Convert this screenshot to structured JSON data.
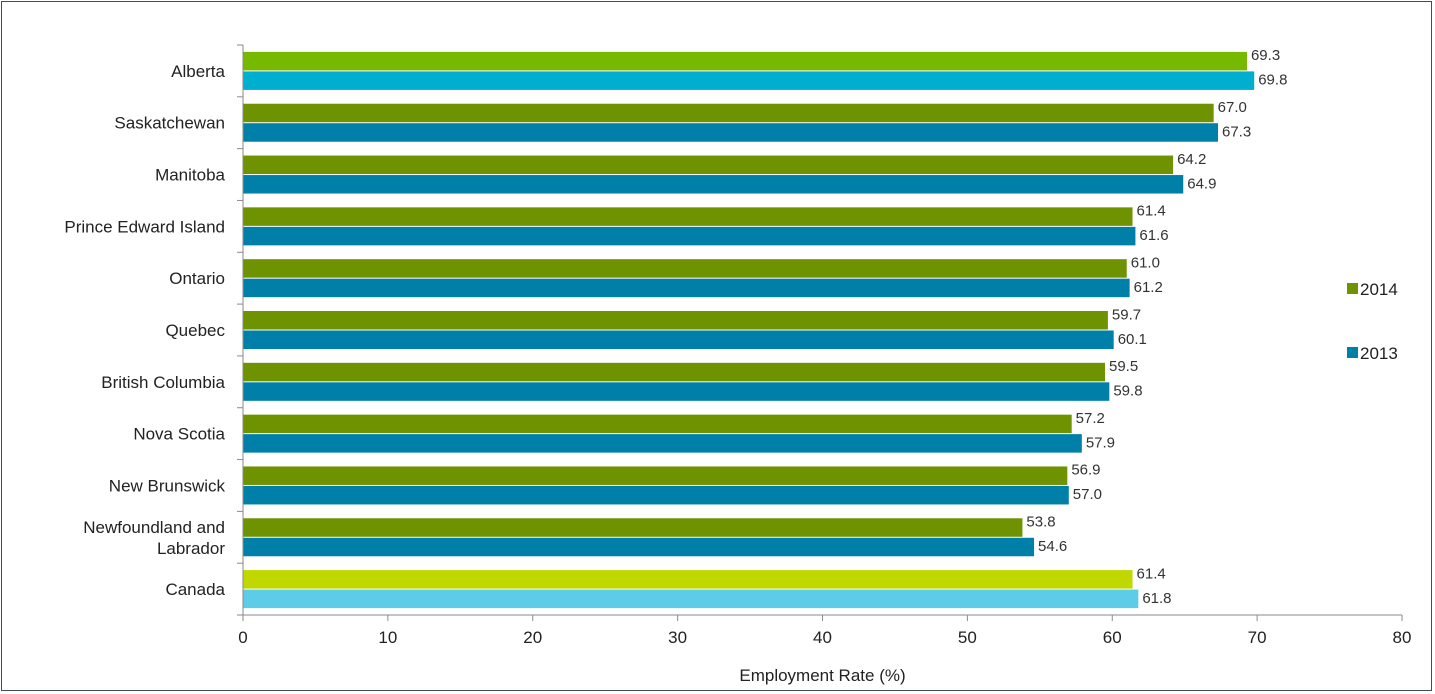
{
  "chart_data": {
    "type": "bar",
    "orientation": "horizontal",
    "categories": [
      "Alberta",
      "Saskatchewan",
      "Manitoba",
      "Prince Edward Island",
      "Ontario",
      "Quebec",
      "British Columbia",
      "Nova Scotia",
      "New Brunswick",
      "Newfoundland and Labrador",
      "Canada"
    ],
    "category_lines": [
      [
        "Alberta"
      ],
      [
        "Saskatchewan"
      ],
      [
        "Manitoba"
      ],
      [
        "Prince Edward Island"
      ],
      [
        "Ontario"
      ],
      [
        "Quebec"
      ],
      [
        "British Columbia"
      ],
      [
        "Nova Scotia"
      ],
      [
        "New Brunswick"
      ],
      [
        "Newfoundland and",
        "Labrador"
      ],
      [
        "Canada"
      ]
    ],
    "series": [
      {
        "name": "2014",
        "values": [
          69.3,
          67.0,
          64.2,
          61.4,
          61.0,
          59.7,
          59.5,
          57.2,
          56.9,
          53.8,
          61.4
        ],
        "labels": [
          "69.3",
          "67.0",
          "64.2",
          "61.4",
          "61.0",
          "59.7",
          "59.5",
          "57.2",
          "56.9",
          "53.8",
          "61.4"
        ],
        "colors": [
          "#77b800",
          "#6f9300",
          "#6f9300",
          "#6f9300",
          "#6f9300",
          "#6f9300",
          "#6f9300",
          "#6f9300",
          "#6f9300",
          "#6f9300",
          "#c0d800"
        ]
      },
      {
        "name": "2013",
        "values": [
          69.8,
          67.3,
          64.9,
          61.6,
          61.2,
          60.1,
          59.8,
          57.9,
          57.0,
          54.6,
          61.8
        ],
        "labels": [
          "69.8",
          "67.3",
          "64.9",
          "61.6",
          "61.2",
          "60.1",
          "59.8",
          "57.9",
          "57.0",
          "54.6",
          "61.8"
        ],
        "colors": [
          "#00afcf",
          "#0080a8",
          "#0080a8",
          "#0080a8",
          "#0080a8",
          "#0080a8",
          "#0080a8",
          "#0080a8",
          "#0080a8",
          "#0080a8",
          "#5ccce8"
        ]
      }
    ],
    "legend": [
      {
        "label": "2014",
        "color": "#6f9300"
      },
      {
        "label": "2013",
        "color": "#0080a8"
      }
    ],
    "legend_position": "right",
    "xlabel": "Employment Rate (%)",
    "ylabel": "",
    "xlim": [
      0,
      80
    ],
    "xticks": [
      0,
      10,
      20,
      30,
      40,
      50,
      60,
      70,
      80
    ],
    "xtick_labels": [
      "0",
      "10",
      "20",
      "30",
      "40",
      "50",
      "60",
      "70",
      "80"
    ],
    "grid": false
  }
}
